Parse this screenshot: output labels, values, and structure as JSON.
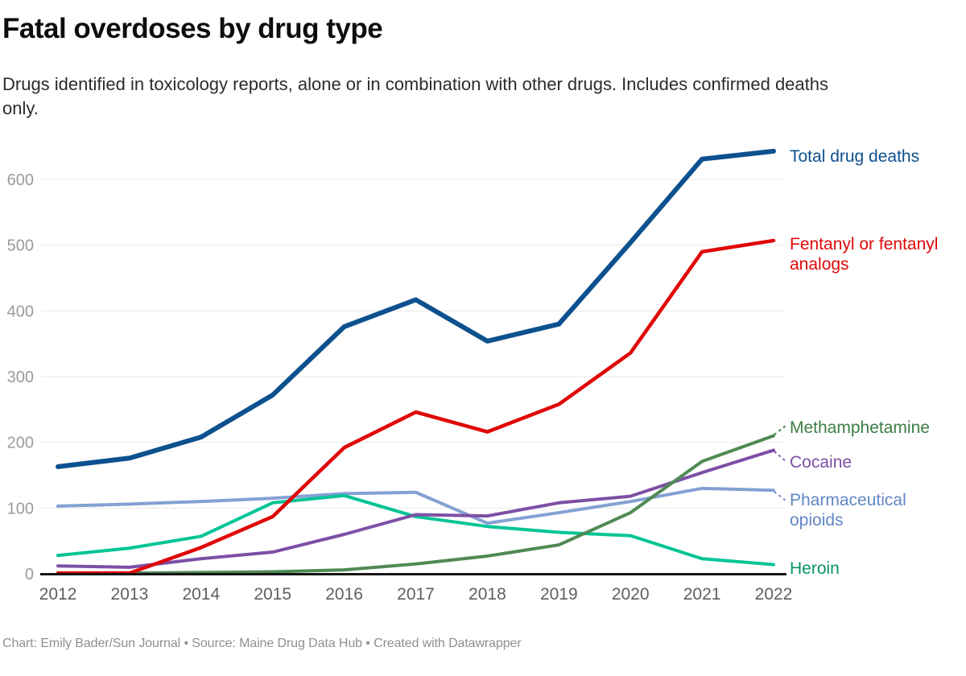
{
  "header": {
    "title": "Fatal overdoses by drug type",
    "subtitle": "Drugs identified in toxicology reports, alone or in combination with other drugs. Includes confirmed deaths only."
  },
  "footer": {
    "text": "Chart: Emily Bader/Sun Journal • Source: Maine Drug Data Hub • Created with Datawrapper"
  },
  "chart_data": {
    "type": "line",
    "title": "Fatal overdoses by drug type",
    "x": [
      2012,
      2013,
      2014,
      2015,
      2016,
      2017,
      2018,
      2019,
      2020,
      2021,
      2022
    ],
    "y_ticks": [
      0,
      100,
      200,
      300,
      400,
      500,
      600
    ],
    "ylim": [
      0,
      660
    ],
    "grid": "horizontal",
    "legend_position": "right-of-line-ends",
    "axis_color": "#151515",
    "gridline_color": "#e9e9e9",
    "series": [
      {
        "name": "Total drug deaths",
        "color": "#0d518f",
        "label_color": "#0d518f",
        "stroke_width": 6,
        "values": [
          163,
          176,
          208,
          272,
          376,
          417,
          354,
          380,
          504,
          631,
          643
        ]
      },
      {
        "name": "Fentanyl or fentanyl analogs",
        "color": "#e00707",
        "label_color": "#e00707",
        "stroke_width": 4.5,
        "values": [
          1,
          1,
          40,
          87,
          192,
          246,
          216,
          258,
          336,
          490,
          507
        ]
      },
      {
        "name": "Methamphetamine",
        "color": "#4f8a54",
        "label_color": "#3d7d46",
        "stroke_width": 4,
        "values": [
          0,
          1,
          2,
          3,
          6,
          15,
          27,
          44,
          93,
          171,
          210
        ]
      },
      {
        "name": "Cocaine",
        "color": "#7d4fa5",
        "label_color": "#7d4fa5",
        "stroke_width": 4,
        "values": [
          12,
          10,
          23,
          33,
          60,
          90,
          88,
          108,
          118,
          154,
          188
        ]
      },
      {
        "name": "Pharmaceutical opioids",
        "color": "#84a1d3",
        "label_color": "#6286c5",
        "stroke_width": 4,
        "values": [
          103,
          106,
          110,
          115,
          122,
          124,
          77,
          93,
          110,
          130,
          127
        ]
      },
      {
        "name": "Heroin",
        "color": "#00c496",
        "label_color": "#0b9268",
        "stroke_width": 4,
        "values": [
          28,
          39,
          57,
          108,
          119,
          87,
          72,
          63,
          58,
          23,
          14
        ]
      }
    ]
  }
}
